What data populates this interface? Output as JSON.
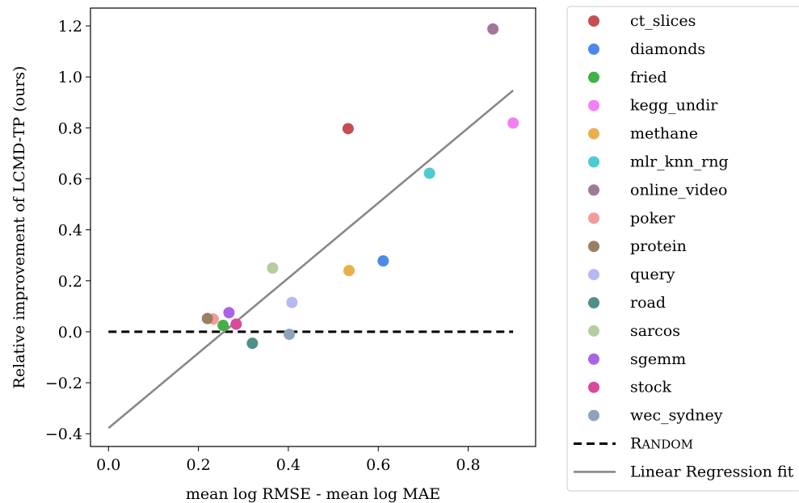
{
  "chart_data": {
    "type": "scatter",
    "xlabel": "mean log RMSE - mean log MAE",
    "ylabel": "Relative improvement of LCMD-TP (ours)",
    "xlim": [
      -0.04,
      0.95
    ],
    "ylim": [
      -0.45,
      1.27
    ],
    "x_ticks": [
      0.0,
      0.2,
      0.4,
      0.6,
      0.8
    ],
    "x_tick_labels": [
      "0.0",
      "0.2",
      "0.4",
      "0.6",
      "0.8"
    ],
    "y_ticks": [
      -0.4,
      -0.2,
      0.0,
      0.2,
      0.4,
      0.6,
      0.8,
      1.0,
      1.2
    ],
    "y_tick_labels": [
      "−0.4",
      "−0.2",
      "0.0",
      "0.2",
      "0.4",
      "0.6",
      "0.8",
      "1.0",
      "1.2"
    ],
    "grid": false,
    "legend_position": "outside-right",
    "series": [
      {
        "name": "ct_slices",
        "color": "#c44e52",
        "x": 0.533,
        "y": 0.797
      },
      {
        "name": "diamonds",
        "color": "#4c8ae8",
        "x": 0.611,
        "y": 0.278
      },
      {
        "name": "fried",
        "color": "#43b048",
        "x": 0.255,
        "y": 0.025
      },
      {
        "name": "kegg_undir",
        "color": "#f37ff4",
        "x": 0.9,
        "y": 0.819
      },
      {
        "name": "methane",
        "color": "#e8b04a",
        "x": 0.535,
        "y": 0.24
      },
      {
        "name": "mlr_knn_rng",
        "color": "#4ccbd1",
        "x": 0.714,
        "y": 0.622
      },
      {
        "name": "online_video",
        "color": "#a07898",
        "x": 0.855,
        "y": 1.188
      },
      {
        "name": "poker",
        "color": "#f59a9a",
        "x": 0.233,
        "y": 0.05
      },
      {
        "name": "protein",
        "color": "#9a8060",
        "x": 0.22,
        "y": 0.052
      },
      {
        "name": "query",
        "color": "#b8b8f5",
        "x": 0.408,
        "y": 0.115
      },
      {
        "name": "road",
        "color": "#4f8f88",
        "x": 0.32,
        "y": -0.045
      },
      {
        "name": "sarcos",
        "color": "#b5cca0",
        "x": 0.365,
        "y": 0.25
      },
      {
        "name": "sgemm",
        "color": "#a964e8",
        "x": 0.268,
        "y": 0.075
      },
      {
        "name": "stock",
        "color": "#d94a9a",
        "x": 0.284,
        "y": 0.03
      },
      {
        "name": "wec_sydney",
        "color": "#8fa2bb",
        "x": 0.402,
        "y": -0.01
      }
    ],
    "reference_lines": [
      {
        "name": "Random",
        "style": "dashed",
        "color": "#000000",
        "x": [
          0.0,
          0.9
        ],
        "y": [
          0.0,
          0.0
        ]
      },
      {
        "name": "Linear Regression fit",
        "style": "solid",
        "color": "#888888",
        "x": [
          0.0,
          0.9
        ],
        "y": [
          -0.378,
          0.947
        ]
      }
    ]
  }
}
